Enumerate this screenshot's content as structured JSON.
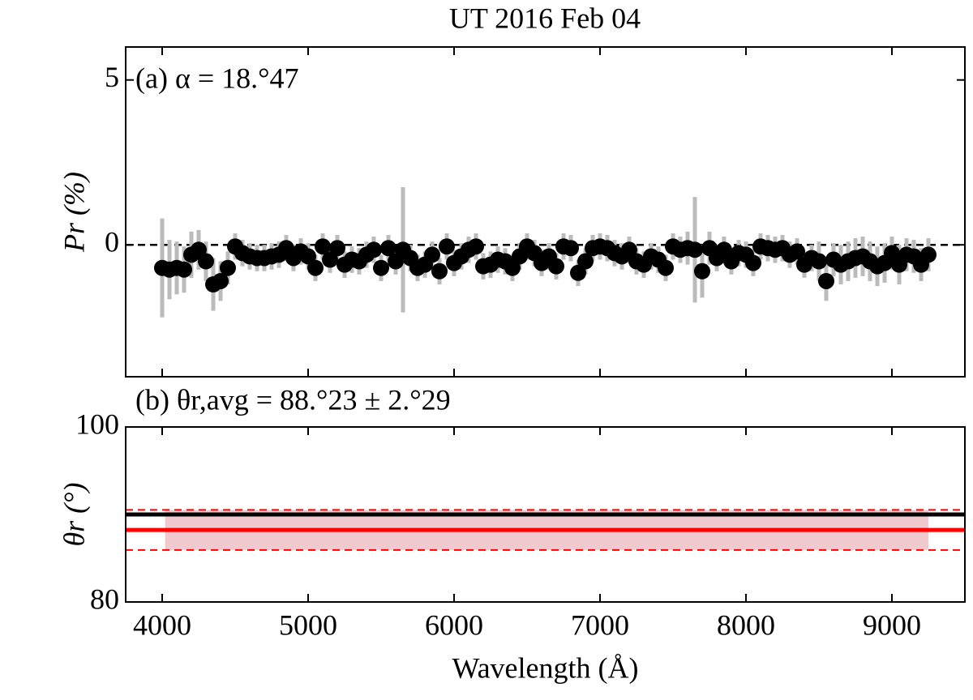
{
  "chart_data": [
    {
      "type": "scatter",
      "title": "UT 2016 Feb 04",
      "annotation": "(a) α = 18.°47",
      "y_label": "Pr (%)",
      "xlim": [
        3750,
        9500
      ],
      "xticks": [
        4000,
        5000,
        6000,
        7000,
        8000,
        9000
      ],
      "ylim": [
        -4,
        6
      ],
      "yticks": [
        0,
        5
      ],
      "hline": 0,
      "hline_color": "#000000",
      "series": [
        {
          "color": "#000000",
          "error_color": "#bbbbbb",
          "x": [
            4000,
            4050,
            4100,
            4150,
            4200,
            4250,
            4300,
            4350,
            4400,
            4450,
            4500,
            4550,
            4600,
            4650,
            4700,
            4750,
            4800,
            4850,
            4900,
            4950,
            5000,
            5050,
            5100,
            5150,
            5200,
            5250,
            5300,
            5350,
            5400,
            5450,
            5500,
            5550,
            5600,
            5650,
            5700,
            5750,
            5800,
            5850,
            5900,
            5950,
            6000,
            6050,
            6100,
            6150,
            6200,
            6250,
            6300,
            6350,
            6400,
            6450,
            6500,
            6550,
            6600,
            6650,
            6700,
            6750,
            6800,
            6850,
            6900,
            6950,
            7000,
            7050,
            7100,
            7150,
            7200,
            7250,
            7300,
            7350,
            7400,
            7450,
            7500,
            7550,
            7600,
            7650,
            7700,
            7750,
            7800,
            7850,
            7900,
            7950,
            8000,
            8050,
            8100,
            8150,
            8200,
            8250,
            8300,
            8350,
            8400,
            8450,
            8500,
            8550,
            8600,
            8650,
            8700,
            8750,
            8800,
            8850,
            8900,
            8950,
            9000,
            9050,
            9100,
            9150,
            9200,
            9250
          ],
          "values": [
            -0.7,
            -0.75,
            -0.7,
            -0.75,
            -0.3,
            -0.15,
            -0.5,
            -1.2,
            -1.1,
            -0.7,
            -0.05,
            -0.25,
            -0.35,
            -0.4,
            -0.4,
            -0.35,
            -0.3,
            -0.1,
            -0.4,
            -0.2,
            -0.35,
            -0.7,
            -0.05,
            -0.45,
            -0.1,
            -0.6,
            -0.45,
            -0.5,
            -0.3,
            -0.15,
            -0.7,
            -0.1,
            -0.5,
            -0.15,
            -0.4,
            -0.7,
            -0.6,
            -0.3,
            -0.8,
            -0.05,
            -0.55,
            -0.35,
            -0.15,
            -0.05,
            -0.65,
            -0.6,
            -0.45,
            -0.5,
            -0.7,
            -0.35,
            -0.05,
            -0.25,
            -0.55,
            -0.35,
            -0.65,
            -0.05,
            -0.1,
            -0.85,
            -0.5,
            -0.1,
            -0.05,
            -0.1,
            -0.25,
            -0.35,
            -0.15,
            -0.5,
            -0.6,
            -0.35,
            -0.45,
            -0.7,
            -0.05,
            -0.15,
            -0.1,
            -0.15,
            -0.8,
            -0.1,
            -0.4,
            -0.15,
            -0.5,
            -0.25,
            -0.3,
            -0.55,
            -0.05,
            -0.1,
            -0.15,
            -0.1,
            -0.3,
            -0.2,
            -0.6,
            -0.4,
            -0.5,
            -1.1,
            -0.45,
            -0.6,
            -0.5,
            -0.4,
            -0.35,
            -0.5,
            -0.65,
            -0.55,
            -0.25,
            -0.6,
            -0.3,
            -0.35,
            -0.6,
            -0.3
          ],
          "errors": [
            1.5,
            0.9,
            0.8,
            0.7,
            0.7,
            0.6,
            0.6,
            0.8,
            0.6,
            0.5,
            0.4,
            0.4,
            0.4,
            0.4,
            0.4,
            0.4,
            0.4,
            0.4,
            0.4,
            0.4,
            0.4,
            0.4,
            0.4,
            0.4,
            0.4,
            0.4,
            0.4,
            0.4,
            0.4,
            0.4,
            0.4,
            0.4,
            0.4,
            1.9,
            0.4,
            0.4,
            0.4,
            0.4,
            0.4,
            0.4,
            0.4,
            0.4,
            0.4,
            0.4,
            0.4,
            0.4,
            0.4,
            0.4,
            0.4,
            0.4,
            0.4,
            0.4,
            0.4,
            0.4,
            0.4,
            0.4,
            0.4,
            0.4,
            0.4,
            0.4,
            0.4,
            0.4,
            0.4,
            0.4,
            0.4,
            0.4,
            0.4,
            0.4,
            0.4,
            0.4,
            0.4,
            0.4,
            0.5,
            1.6,
            0.8,
            0.5,
            0.4,
            0.4,
            0.4,
            0.4,
            0.4,
            0.4,
            0.4,
            0.4,
            0.4,
            0.4,
            0.4,
            0.4,
            0.4,
            0.4,
            0.6,
            0.6,
            0.5,
            0.6,
            0.6,
            0.6,
            0.6,
            0.6,
            0.6,
            0.6,
            0.5,
            0.6,
            0.5,
            0.5,
            0.5,
            0.5
          ]
        }
      ]
    },
    {
      "type": "band",
      "annotation": "(b) θr,avg = 88.°23 ± 2.°29",
      "y_label": "θr (°)",
      "x_label": "Wavelength (Å)",
      "xlim": [
        3750,
        9500
      ],
      "xticks": [
        4000,
        5000,
        6000,
        7000,
        8000,
        9000
      ],
      "ylim": [
        80,
        100
      ],
      "yticks": [
        80,
        100
      ],
      "reference": 90,
      "reference_color": "#000000",
      "mean": 88.23,
      "std": 2.29,
      "mean_color": "#ff0000",
      "band_x": [
        4020,
        9250
      ],
      "band_color": "#e8a6b0"
    }
  ]
}
